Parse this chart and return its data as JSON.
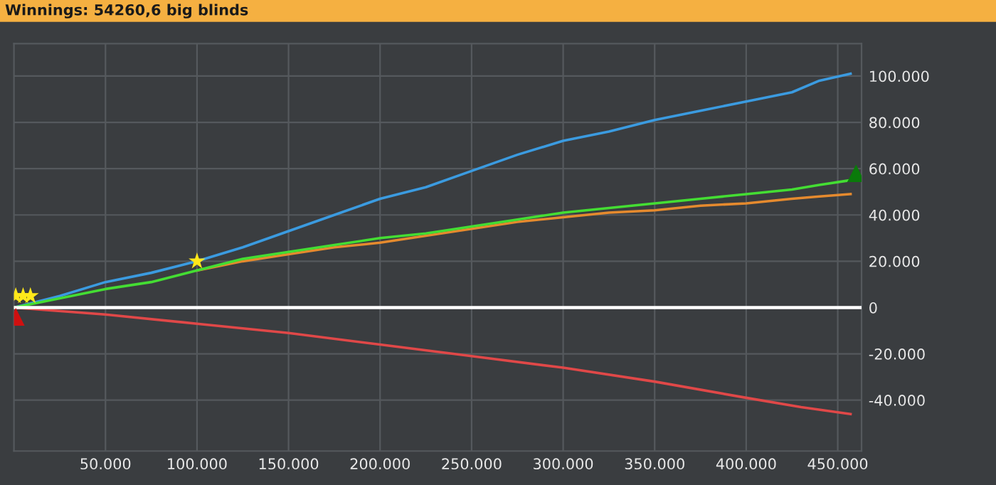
{
  "chart_data": {
    "type": "line",
    "title": "Winnings: 54260,6 big blinds",
    "xlim": [
      0,
      463000
    ],
    "ylim": [
      -62000,
      114000
    ],
    "xticks": [
      {
        "value": 50000,
        "label": "50.000"
      },
      {
        "value": 100000,
        "label": "100.000"
      },
      {
        "value": 150000,
        "label": "150.000"
      },
      {
        "value": 200000,
        "label": "200.000"
      },
      {
        "value": 250000,
        "label": "250.000"
      },
      {
        "value": 300000,
        "label": "300.000"
      },
      {
        "value": 350000,
        "label": "350.000"
      },
      {
        "value": 400000,
        "label": "400.000"
      },
      {
        "value": 450000,
        "label": "450.000"
      }
    ],
    "yticks": [
      {
        "value": -40000,
        "label": "-40.000"
      },
      {
        "value": -20000,
        "label": "-20.000"
      },
      0,
      {
        "value": 20000,
        "label": "20.000"
      },
      {
        "value": 40000,
        "label": "40.000"
      },
      {
        "value": 60000,
        "label": "60.000"
      },
      {
        "value": 80000,
        "label": "80.000"
      },
      {
        "value": 100000,
        "label": "100.000"
      }
    ],
    "grid": true,
    "ref_lines": [
      {
        "axis": "y",
        "value": 0,
        "color": "#ffffff"
      }
    ],
    "series": [
      {
        "color": "#3b9be0",
        "x": [
          0,
          25000,
          50000,
          75000,
          100000,
          125000,
          150000,
          175000,
          200000,
          225000,
          250000,
          275000,
          300000,
          325000,
          350000,
          375000,
          400000,
          425000,
          440000,
          457000
        ],
        "values": [
          0,
          5000,
          11000,
          15000,
          20000,
          26000,
          33000,
          40000,
          47000,
          52000,
          59000,
          66000,
          72000,
          76000,
          81000,
          85000,
          89000,
          93000,
          98000,
          101000
        ]
      },
      {
        "color": "#e58a2e",
        "x": [
          100000,
          125000,
          150000,
          175000,
          200000,
          225000,
          250000,
          275000,
          300000,
          325000,
          350000,
          375000,
          400000,
          425000,
          440000,
          457000
        ],
        "values": [
          16000,
          20000,
          23000,
          26000,
          28000,
          31000,
          34000,
          37000,
          39000,
          41000,
          42000,
          44000,
          45000,
          47000,
          48000,
          49000
        ]
      },
      {
        "color": "#44dd33",
        "x": [
          0,
          25000,
          50000,
          75000,
          100000,
          125000,
          150000,
          175000,
          200000,
          225000,
          250000,
          275000,
          300000,
          325000,
          350000,
          375000,
          400000,
          425000,
          440000,
          457000
        ],
        "values": [
          0,
          4000,
          8000,
          11000,
          16000,
          21000,
          24000,
          27000,
          30000,
          32000,
          35000,
          38000,
          41000,
          43000,
          45000,
          47000,
          49000,
          51000,
          53000,
          55000
        ]
      },
      {
        "color": "#e04848",
        "x": [
          0,
          50000,
          100000,
          150000,
          200000,
          250000,
          300000,
          350000,
          400000,
          430000,
          457000
        ],
        "values": [
          0,
          -3000,
          -7000,
          -11000,
          -16000,
          -21000,
          -26000,
          -32000,
          -39000,
          -43000,
          -46000
        ]
      },
      {
        "type": "scatter",
        "marker": "star",
        "color": "#ffe81a",
        "x": [
          1000,
          5000,
          9000,
          100000
        ],
        "values": [
          5000,
          5000,
          5000,
          20000
        ]
      },
      {
        "type": "scatter",
        "marker": "triangle",
        "color": "#d01010",
        "x": [
          1000
        ],
        "values": [
          -4000
        ]
      },
      {
        "type": "scatter",
        "marker": "triangle",
        "color": "#0a7a0a",
        "x": [
          460000
        ],
        "values": [
          58000
        ]
      }
    ]
  }
}
